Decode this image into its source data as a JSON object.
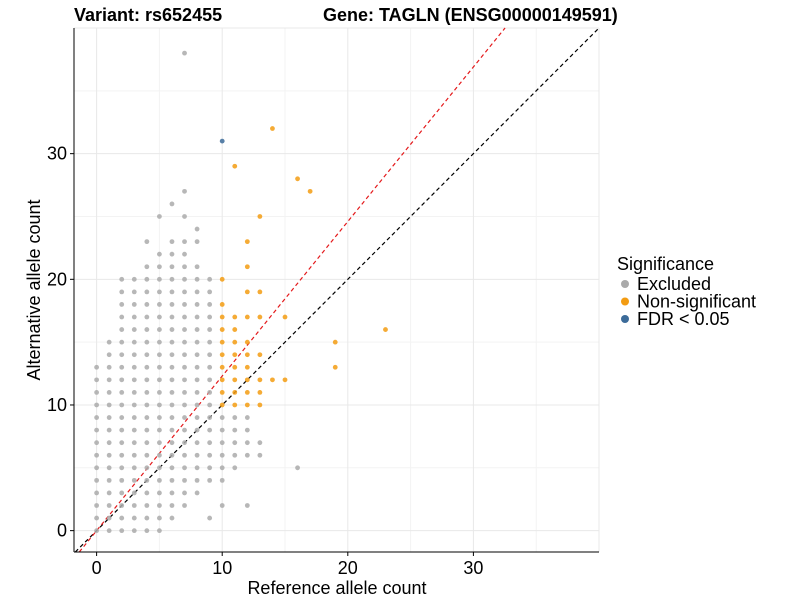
{
  "chart_data": {
    "type": "scatter",
    "title_left": "Variant: rs652455",
    "title_right": "Gene: TAGLN (ENSG00000149591)",
    "xlabel": "Reference allele count",
    "ylabel": "Alternative allele count",
    "xlim": [
      -1.8,
      40
    ],
    "ylim": [
      -1.7,
      40
    ],
    "xticks": [
      0,
      10,
      20,
      30
    ],
    "yticks": [
      0,
      10,
      20,
      30
    ],
    "grid": true,
    "legend": {
      "title": "Significance",
      "position": "right",
      "entries": [
        {
          "label": "Excluded",
          "color": "#aaaaaa"
        },
        {
          "label": "Non-significant",
          "color": "#f39c12"
        },
        {
          "label": "FDR < 0.05",
          "color": "#3c6b99"
        }
      ]
    },
    "reference_lines": [
      {
        "name": "diagonal",
        "slope": 1,
        "intercept": 0,
        "color": "#000000",
        "style": "dashed"
      },
      {
        "name": "fitted",
        "slope": 1.23,
        "intercept": 0,
        "color": "#e41a1c",
        "style": "dashed"
      }
    ],
    "series": [
      {
        "name": "Excluded",
        "color": "#aaaaaa",
        "points": [
          [
            0,
            0
          ],
          [
            0,
            1
          ],
          [
            0,
            2
          ],
          [
            0,
            3
          ],
          [
            0,
            4
          ],
          [
            0,
            5
          ],
          [
            0,
            6
          ],
          [
            0,
            7
          ],
          [
            0,
            8
          ],
          [
            0,
            9
          ],
          [
            0,
            10
          ],
          [
            0,
            11
          ],
          [
            0,
            12
          ],
          [
            0,
            13
          ],
          [
            1,
            0
          ],
          [
            1,
            1
          ],
          [
            1,
            2
          ],
          [
            1,
            3
          ],
          [
            1,
            4
          ],
          [
            1,
            5
          ],
          [
            1,
            6
          ],
          [
            1,
            7
          ],
          [
            1,
            8
          ],
          [
            1,
            9
          ],
          [
            1,
            10
          ],
          [
            1,
            11
          ],
          [
            1,
            12
          ],
          [
            1,
            13
          ],
          [
            1,
            14
          ],
          [
            1,
            15
          ],
          [
            2,
            0
          ],
          [
            2,
            1
          ],
          [
            2,
            2
          ],
          [
            2,
            3
          ],
          [
            2,
            4
          ],
          [
            2,
            5
          ],
          [
            2,
            6
          ],
          [
            2,
            7
          ],
          [
            2,
            8
          ],
          [
            2,
            9
          ],
          [
            2,
            10
          ],
          [
            2,
            11
          ],
          [
            2,
            12
          ],
          [
            2,
            13
          ],
          [
            2,
            14
          ],
          [
            2,
            15
          ],
          [
            2,
            16
          ],
          [
            2,
            17
          ],
          [
            2,
            18
          ],
          [
            2,
            19
          ],
          [
            2,
            20
          ],
          [
            3,
            0
          ],
          [
            3,
            1
          ],
          [
            3,
            2
          ],
          [
            3,
            3
          ],
          [
            3,
            4
          ],
          [
            3,
            5
          ],
          [
            3,
            6
          ],
          [
            3,
            7
          ],
          [
            3,
            8
          ],
          [
            3,
            9
          ],
          [
            3,
            10
          ],
          [
            3,
            11
          ],
          [
            3,
            12
          ],
          [
            3,
            13
          ],
          [
            3,
            14
          ],
          [
            3,
            15
          ],
          [
            3,
            16
          ],
          [
            3,
            17
          ],
          [
            3,
            18
          ],
          [
            3,
            19
          ],
          [
            3,
            20
          ],
          [
            4,
            0
          ],
          [
            4,
            1
          ],
          [
            4,
            2
          ],
          [
            4,
            3
          ],
          [
            4,
            4
          ],
          [
            4,
            5
          ],
          [
            4,
            6
          ],
          [
            4,
            7
          ],
          [
            4,
            8
          ],
          [
            4,
            9
          ],
          [
            4,
            10
          ],
          [
            4,
            11
          ],
          [
            4,
            12
          ],
          [
            4,
            13
          ],
          [
            4,
            14
          ],
          [
            4,
            15
          ],
          [
            4,
            16
          ],
          [
            4,
            17
          ],
          [
            4,
            18
          ],
          [
            4,
            19
          ],
          [
            4,
            20
          ],
          [
            4,
            21
          ],
          [
            4,
            23
          ],
          [
            5,
            0
          ],
          [
            5,
            1
          ],
          [
            5,
            2
          ],
          [
            5,
            3
          ],
          [
            5,
            4
          ],
          [
            5,
            5
          ],
          [
            5,
            6
          ],
          [
            5,
            7
          ],
          [
            5,
            8
          ],
          [
            5,
            9
          ],
          [
            5,
            10
          ],
          [
            5,
            11
          ],
          [
            5,
            12
          ],
          [
            5,
            13
          ],
          [
            5,
            14
          ],
          [
            5,
            15
          ],
          [
            5,
            16
          ],
          [
            5,
            17
          ],
          [
            5,
            18
          ],
          [
            5,
            19
          ],
          [
            5,
            20
          ],
          [
            5,
            21
          ],
          [
            5,
            22
          ],
          [
            5,
            25
          ],
          [
            6,
            1
          ],
          [
            6,
            2
          ],
          [
            6,
            3
          ],
          [
            6,
            4
          ],
          [
            6,
            5
          ],
          [
            6,
            6
          ],
          [
            6,
            7
          ],
          [
            6,
            8
          ],
          [
            6,
            9
          ],
          [
            6,
            10
          ],
          [
            6,
            11
          ],
          [
            6,
            12
          ],
          [
            6,
            13
          ],
          [
            6,
            14
          ],
          [
            6,
            15
          ],
          [
            6,
            16
          ],
          [
            6,
            17
          ],
          [
            6,
            18
          ],
          [
            6,
            19
          ],
          [
            6,
            20
          ],
          [
            6,
            21
          ],
          [
            6,
            22
          ],
          [
            6,
            23
          ],
          [
            6,
            26
          ],
          [
            7,
            2
          ],
          [
            7,
            3
          ],
          [
            7,
            4
          ],
          [
            7,
            5
          ],
          [
            7,
            6
          ],
          [
            7,
            7
          ],
          [
            7,
            8
          ],
          [
            7,
            9
          ],
          [
            7,
            10
          ],
          [
            7,
            11
          ],
          [
            7,
            12
          ],
          [
            7,
            13
          ],
          [
            7,
            14
          ],
          [
            7,
            15
          ],
          [
            7,
            16
          ],
          [
            7,
            17
          ],
          [
            7,
            18
          ],
          [
            7,
            19
          ],
          [
            7,
            20
          ],
          [
            7,
            21
          ],
          [
            7,
            22
          ],
          [
            7,
            23
          ],
          [
            7,
            25
          ],
          [
            7,
            27
          ],
          [
            7,
            38
          ],
          [
            8,
            3
          ],
          [
            8,
            4
          ],
          [
            8,
            5
          ],
          [
            8,
            6
          ],
          [
            8,
            7
          ],
          [
            8,
            8
          ],
          [
            8,
            9
          ],
          [
            8,
            10
          ],
          [
            8,
            11
          ],
          [
            8,
            12
          ],
          [
            8,
            13
          ],
          [
            8,
            14
          ],
          [
            8,
            15
          ],
          [
            8,
            16
          ],
          [
            8,
            17
          ],
          [
            8,
            18
          ],
          [
            8,
            19
          ],
          [
            8,
            20
          ],
          [
            8,
            21
          ],
          [
            8,
            23
          ],
          [
            8,
            24
          ],
          [
            9,
            1
          ],
          [
            9,
            4
          ],
          [
            9,
            5
          ],
          [
            9,
            6
          ],
          [
            9,
            7
          ],
          [
            9,
            8
          ],
          [
            9,
            9
          ],
          [
            9,
            10
          ],
          [
            9,
            11
          ],
          [
            9,
            12
          ],
          [
            9,
            13
          ],
          [
            9,
            14
          ],
          [
            9,
            15
          ],
          [
            9,
            16
          ],
          [
            9,
            17
          ],
          [
            9,
            18
          ],
          [
            9,
            19
          ],
          [
            9,
            20
          ],
          [
            10,
            2
          ],
          [
            10,
            4
          ],
          [
            10,
            5
          ],
          [
            10,
            6
          ],
          [
            10,
            7
          ],
          [
            10,
            8
          ],
          [
            10,
            9
          ],
          [
            11,
            5
          ],
          [
            11,
            6
          ],
          [
            11,
            7
          ],
          [
            11,
            8
          ],
          [
            11,
            9
          ],
          [
            12,
            2
          ],
          [
            12,
            6
          ],
          [
            12,
            7
          ],
          [
            12,
            8
          ],
          [
            12,
            9
          ],
          [
            13,
            6
          ],
          [
            13,
            7
          ],
          [
            16,
            5
          ]
        ]
      },
      {
        "name": "Non-significant",
        "color": "#f39c12",
        "points": [
          [
            10,
            10
          ],
          [
            10,
            11
          ],
          [
            10,
            12
          ],
          [
            10,
            13
          ],
          [
            10,
            14
          ],
          [
            10,
            15
          ],
          [
            10,
            16
          ],
          [
            10,
            17
          ],
          [
            10,
            18
          ],
          [
            10,
            20
          ],
          [
            11,
            10
          ],
          [
            11,
            11
          ],
          [
            11,
            12
          ],
          [
            11,
            13
          ],
          [
            11,
            14
          ],
          [
            11,
            15
          ],
          [
            11,
            16
          ],
          [
            11,
            17
          ],
          [
            11,
            29
          ],
          [
            12,
            10
          ],
          [
            12,
            11
          ],
          [
            12,
            12
          ],
          [
            12,
            13
          ],
          [
            12,
            14
          ],
          [
            12,
            15
          ],
          [
            12,
            17
          ],
          [
            12,
            19
          ],
          [
            12,
            21
          ],
          [
            12,
            23
          ],
          [
            13,
            10
          ],
          [
            13,
            11
          ],
          [
            13,
            12
          ],
          [
            13,
            14
          ],
          [
            13,
            17
          ],
          [
            13,
            19
          ],
          [
            13,
            25
          ],
          [
            14,
            12
          ],
          [
            14,
            32
          ],
          [
            15,
            12
          ],
          [
            15,
            17
          ],
          [
            16,
            28
          ],
          [
            17,
            27
          ],
          [
            19,
            13
          ],
          [
            19,
            15
          ],
          [
            23,
            16
          ]
        ]
      },
      {
        "name": "FDR < 0.05",
        "color": "#3c6b99",
        "points": [
          [
            10,
            31
          ]
        ]
      }
    ]
  }
}
